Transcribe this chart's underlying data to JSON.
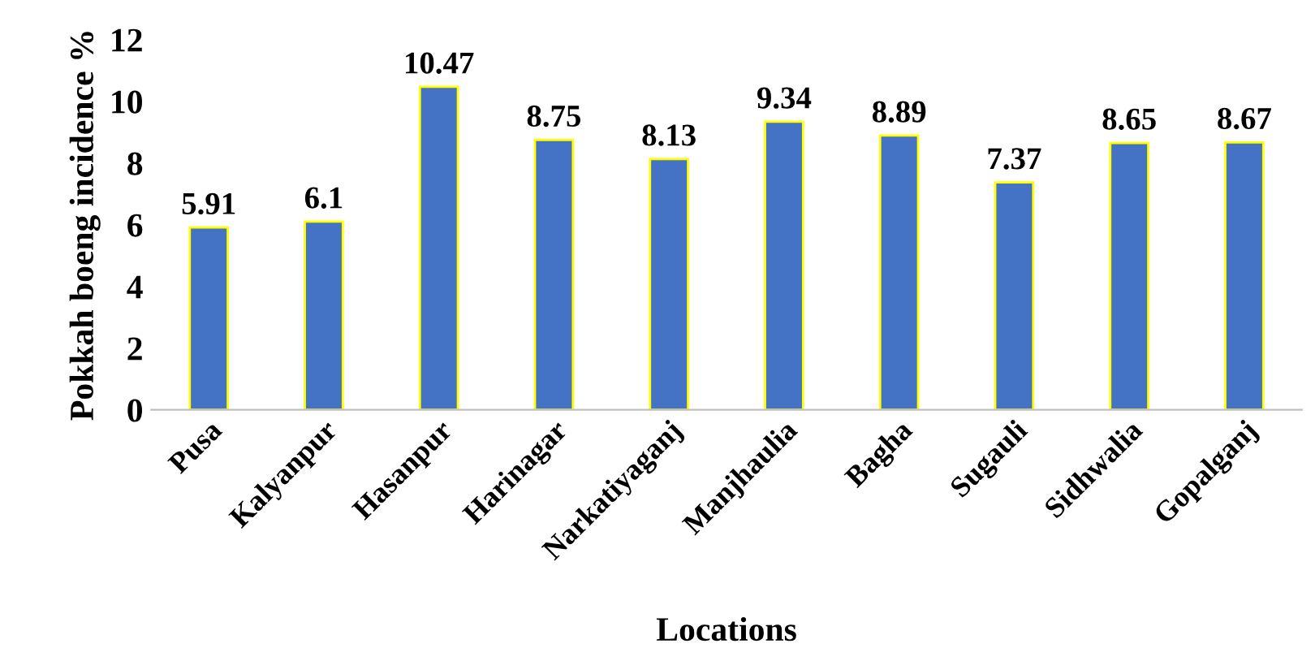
{
  "chart_data": {
    "type": "bar",
    "xlabel": "Locations",
    "ylabel": "Pokkah boeng incidence %",
    "categories": [
      "Pusa",
      "Kalyanpur",
      "Hasanpur",
      "Harinagar",
      "Narkatiyaganj",
      "Manjhaulia",
      "Bagha",
      "Sugauli",
      "Sidhwalia",
      "Gopalganj"
    ],
    "values": [
      5.91,
      6.1,
      10.47,
      8.75,
      8.13,
      9.34,
      8.89,
      7.37,
      8.65,
      8.67
    ],
    "color": "#4472c4",
    "ylim": [
      0,
      12
    ],
    "yticks": [
      0,
      2,
      4,
      6,
      8,
      10,
      12
    ],
    "data_labels": true,
    "grid": false
  }
}
